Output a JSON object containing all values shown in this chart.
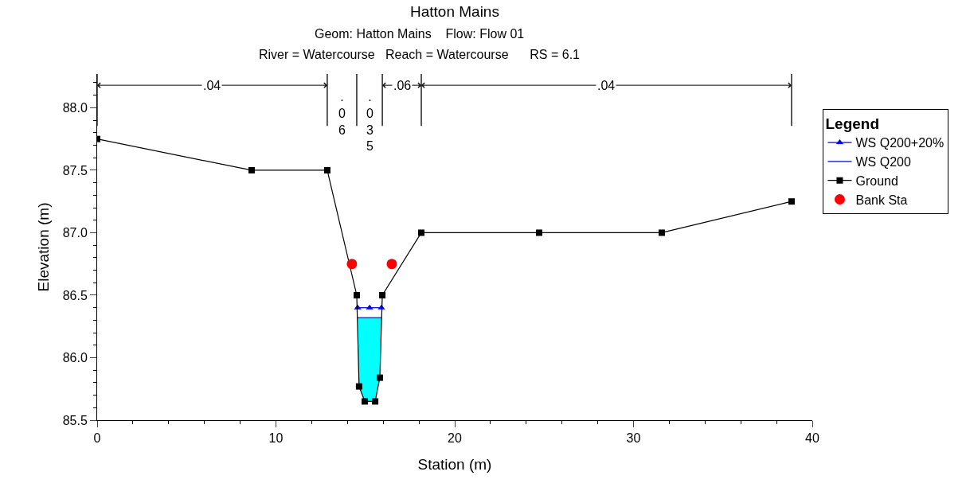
{
  "chart_data": {
    "type": "line",
    "title": "Hatton Mains",
    "subtitle": "Geom: Hatton Mains    Flow: Flow 01\nRiver = Watercourse   Reach = Watercourse      RS = 6.1",
    "xlabel": "Station (m)",
    "ylabel": "Elevation (m)",
    "xlim": [
      0,
      40
    ],
    "xticks": [
      0,
      10,
      20,
      30,
      40
    ],
    "ylim": [
      85.5,
      88.27
    ],
    "yticks": [
      {
        "value": 85.5,
        "label": "85.5"
      },
      {
        "value": 86.0,
        "label": "86.0"
      },
      {
        "value": 86.5,
        "label": "86.5"
      },
      {
        "value": 87.0,
        "label": "87.0"
      },
      {
        "value": 87.5,
        "label": "87.5"
      },
      {
        "value": 88.0,
        "label": "88.0"
      }
    ],
    "legend": "right",
    "legend_title": "Legend",
    "series": [
      {
        "name": "WS Q200+20%",
        "type": "line",
        "color": "#0000ff",
        "marker": "triangle",
        "x": [
          14.57,
          15.24,
          15.9
        ],
        "values": [
          86.4,
          86.4,
          86.4
        ]
      },
      {
        "name": "WS Q200",
        "type": "line",
        "color": "#0000ff",
        "x": [
          14.57,
          14.65,
          14.97,
          15.55,
          15.81,
          15.9
        ],
        "values": [
          86.32,
          86.32,
          86.32,
          86.32,
          86.32,
          86.32
        ],
        "lower": [
          86.32,
          85.77,
          85.65,
          85.65,
          85.84,
          86.32
        ],
        "upper": [
          86.32,
          86.32,
          86.32,
          86.32,
          86.32,
          86.32
        ]
      },
      {
        "name": "Ground",
        "color": "#000000",
        "marker": "square",
        "x": [
          0,
          8.64,
          12.87,
          14.52,
          14.65,
          14.97,
          15.55,
          15.81,
          15.95,
          18.13,
          24.72,
          31.58,
          38.84
        ],
        "values": [
          87.75,
          87.5,
          87.5,
          86.5,
          85.77,
          85.65,
          85.65,
          85.84,
          86.5,
          87.0,
          87.0,
          87.0,
          87.25
        ]
      },
      {
        "name": "Bank Sta",
        "type": "scatter",
        "color": "#ff0000",
        "marker": "circle",
        "x": [
          14.25,
          16.48
        ],
        "values": [
          86.75,
          86.75
        ]
      }
    ],
    "ref_lines": [
      {
        "axis": "x",
        "value": 0,
        "color": "#000000"
      },
      {
        "axis": "x",
        "value": 12.87,
        "color": "#000000"
      },
      {
        "axis": "x",
        "value": 14.52,
        "color": "#000000"
      },
      {
        "axis": "x",
        "value": 15.95,
        "color": "#000000"
      },
      {
        "axis": "x",
        "value": 18.13,
        "color": "#000000"
      },
      {
        "axis": "x",
        "value": 38.84,
        "color": "#000000"
      }
    ],
    "annotations": [
      {
        "text": ".04",
        "x": 6.435,
        "y": 88.18
      },
      ".06",
      ".035",
      {
        "text": ".06",
        "x": 17.04,
        "y": 88.18
      },
      {
        "text": ".04",
        "x": 28.485,
        "y": 88.18
      }
    ]
  }
}
